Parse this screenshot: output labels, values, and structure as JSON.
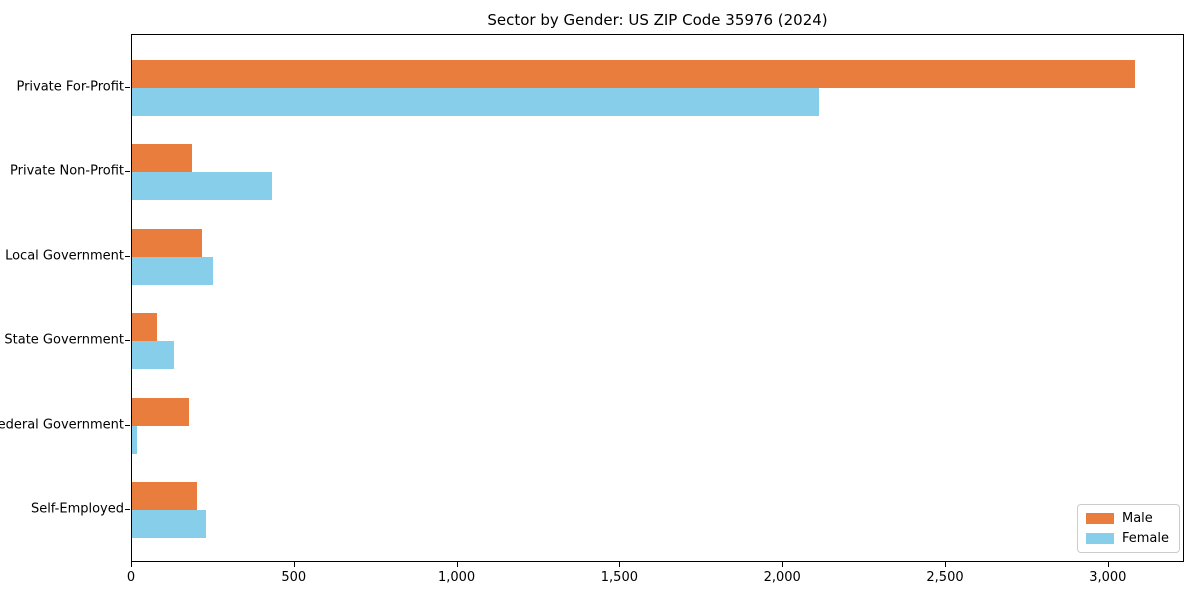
{
  "chart_data": {
    "type": "bar",
    "orientation": "horizontal",
    "title": "Sector by Gender: US ZIP Code 35976 (2024)",
    "xlabel": "",
    "ylabel": "",
    "categories": [
      "Private For-Profit",
      "Private Non-Profit",
      "Local Government",
      "State Government",
      "Federal Government",
      "Self-Employed"
    ],
    "series": [
      {
        "name": "Male",
        "color": "#e87d3e",
        "values": [
          3080,
          185,
          215,
          78,
          175,
          200
        ]
      },
      {
        "name": "Female",
        "color": "#87ceeb",
        "values": [
          2110,
          430,
          250,
          130,
          15,
          228
        ]
      }
    ],
    "xlim": [
      0,
      3234
    ],
    "xticks": [
      {
        "value": 0,
        "label": "0"
      },
      {
        "value": 500,
        "label": "500"
      },
      {
        "value": 1000,
        "label": "1,000"
      },
      {
        "value": 1500,
        "label": "1,500"
      },
      {
        "value": 2000,
        "label": "2,000"
      },
      {
        "value": 2500,
        "label": "2,500"
      },
      {
        "value": 3000,
        "label": "3,000"
      }
    ],
    "grid": false,
    "legend_position": "lower right",
    "background_color": "#ffffff",
    "axis_color": "#000000"
  }
}
